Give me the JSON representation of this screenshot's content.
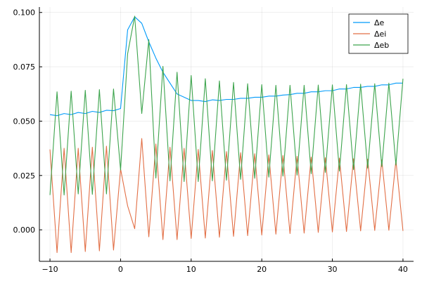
{
  "chart_data": {
    "type": "line",
    "title": "",
    "xlabel": "",
    "ylabel": "",
    "xlim": [
      -11.5,
      41.5
    ],
    "ylim": [
      -0.0145,
      0.1025
    ],
    "x_ticks": [
      -10,
      0,
      10,
      20,
      30,
      40
    ],
    "x_tick_labels": [
      "−10",
      "0",
      "10",
      "20",
      "30",
      "40"
    ],
    "y_ticks": [
      0,
      0.025,
      0.05,
      0.075,
      0.1
    ],
    "y_tick_labels": [
      "0.000",
      "0.025",
      "0.050",
      "0.075",
      "0.100"
    ],
    "grid": true,
    "legend_position": "top-right",
    "x": [
      -10,
      -9,
      -8,
      -7,
      -6,
      -5,
      -4,
      -3,
      -2,
      -1,
      0,
      1,
      2,
      3,
      4,
      5,
      6,
      7,
      8,
      9,
      10,
      11,
      12,
      13,
      14,
      15,
      16,
      17,
      18,
      19,
      20,
      21,
      22,
      23,
      24,
      25,
      26,
      27,
      28,
      29,
      30,
      31,
      32,
      33,
      34,
      35,
      36,
      37,
      38,
      39,
      40
    ],
    "series": [
      {
        "name": "Δe",
        "color": "#009af9",
        "values": [
          0.053,
          0.0525,
          0.0535,
          0.053,
          0.054,
          0.0535,
          0.0545,
          0.054,
          0.055,
          0.0548,
          0.0558,
          0.092,
          0.098,
          0.095,
          0.0865,
          0.079,
          0.0725,
          0.0675,
          0.0625,
          0.061,
          0.0595,
          0.0595,
          0.059,
          0.0598,
          0.0595,
          0.06,
          0.06,
          0.0605,
          0.0605,
          0.061,
          0.061,
          0.0615,
          0.0615,
          0.062,
          0.0622,
          0.0628,
          0.0628,
          0.0635,
          0.0635,
          0.064,
          0.064,
          0.0648,
          0.0648,
          0.0655,
          0.0655,
          0.066,
          0.066,
          0.0667,
          0.0667,
          0.0675,
          0.0675
        ]
      },
      {
        "name": "Δei",
        "color": "#e26f46",
        "values": [
          0.037,
          -0.0105,
          0.0375,
          -0.0105,
          0.0375,
          -0.01,
          0.038,
          -0.0097,
          0.0385,
          -0.0093,
          0.028,
          0.011,
          0.0005,
          0.042,
          -0.0032,
          0.0395,
          -0.0045,
          0.038,
          -0.0045,
          0.0375,
          -0.004,
          0.037,
          -0.0038,
          0.0365,
          -0.0034,
          0.036,
          -0.003,
          0.0355,
          -0.0027,
          0.035,
          -0.0024,
          0.0345,
          -0.002,
          0.0342,
          -0.0017,
          0.0338,
          -0.0015,
          0.0335,
          -0.0012,
          0.0332,
          -0.001,
          0.033,
          -0.0008,
          0.0327,
          -0.0005,
          0.0325,
          -0.0003,
          0.0322,
          -0.0002,
          0.032,
          -0.0005
        ]
      },
      {
        "name": "Δeb",
        "color": "#3da44d",
        "values": [
          0.016,
          0.0635,
          0.016,
          0.0638,
          0.0165,
          0.0642,
          0.0163,
          0.0645,
          0.0165,
          0.0648,
          0.0275,
          0.081,
          0.0983,
          0.0535,
          0.0875,
          0.0238,
          0.0752,
          0.0225,
          0.0725,
          0.0222,
          0.071,
          0.0222,
          0.0695,
          0.0225,
          0.0685,
          0.0228,
          0.0678,
          0.0232,
          0.0672,
          0.0237,
          0.0668,
          0.0242,
          0.0665,
          0.0247,
          0.0665,
          0.0252,
          0.0665,
          0.0258,
          0.0666,
          0.0264,
          0.0667,
          0.027,
          0.0668,
          0.0277,
          0.067,
          0.0284,
          0.0672,
          0.0291,
          0.0675,
          0.0298,
          0.0695
        ]
      }
    ]
  }
}
